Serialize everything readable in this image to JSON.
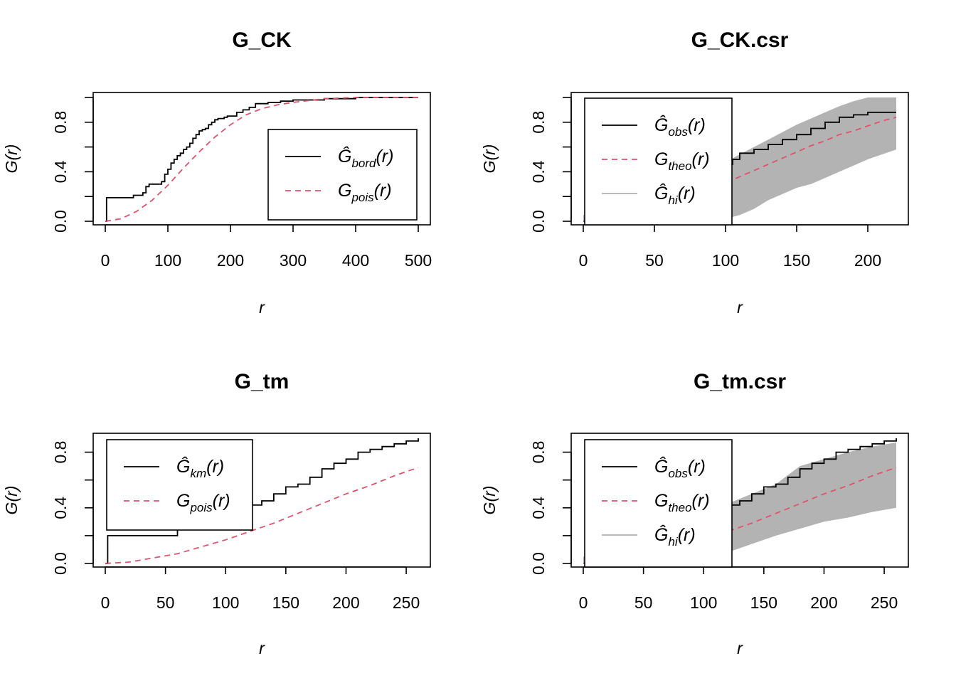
{
  "chart_data": [
    {
      "type": "line",
      "title": "G_CK",
      "xlabel": "r",
      "ylabel": "G(r)",
      "xlim": [
        0,
        500
      ],
      "ylim": [
        0,
        1
      ],
      "xticks": [
        0,
        100,
        200,
        300,
        400,
        500
      ],
      "yticks": [
        0,
        0.4,
        0.8
      ],
      "ytick_labels": [
        "0.0",
        "0.4",
        "0.8"
      ],
      "envelope": null,
      "series": [
        {
          "name": "Ĝbord(r)",
          "symbol": "Ĝ",
          "subscript": "bord",
          "arg": "(r)",
          "color": "#000000",
          "dash": "solid",
          "step": true,
          "x": [
            0,
            2,
            40,
            45,
            50,
            60,
            65,
            70,
            80,
            90,
            95,
            100,
            105,
            110,
            115,
            120,
            125,
            130,
            135,
            140,
            145,
            150,
            155,
            160,
            165,
            170,
            175,
            180,
            185,
            190,
            195,
            200,
            210,
            220,
            230,
            240,
            260,
            280,
            300,
            350,
            400,
            450,
            500
          ],
          "y": [
            0,
            0.19,
            0.19,
            0.21,
            0.21,
            0.23,
            0.28,
            0.3,
            0.3,
            0.32,
            0.38,
            0.42,
            0.47,
            0.5,
            0.53,
            0.55,
            0.58,
            0.6,
            0.63,
            0.67,
            0.7,
            0.73,
            0.74,
            0.75,
            0.78,
            0.8,
            0.82,
            0.83,
            0.83,
            0.84,
            0.85,
            0.85,
            0.88,
            0.9,
            0.92,
            0.95,
            0.96,
            0.97,
            0.98,
            0.99,
            1.0,
            1.0,
            1.0
          ]
        },
        {
          "name": "Gpois(r)",
          "symbol": "G",
          "subscript": "pois",
          "arg": "(r)",
          "color": "#df536b",
          "dash": "dashed",
          "step": false,
          "x": [
            0,
            25,
            50,
            75,
            100,
            125,
            150,
            175,
            200,
            225,
            250,
            275,
            300,
            350,
            400,
            450,
            500
          ],
          "y": [
            0,
            0.02,
            0.08,
            0.17,
            0.29,
            0.43,
            0.56,
            0.68,
            0.78,
            0.86,
            0.91,
            0.94,
            0.96,
            0.99,
            1.0,
            1.0,
            1.0
          ]
        }
      ],
      "legend": "right"
    },
    {
      "type": "line",
      "title": "G_CK.csr",
      "xlabel": "r",
      "ylabel": "G(r)",
      "xlim": [
        0,
        220
      ],
      "ylim": [
        0,
        1
      ],
      "xticks": [
        0,
        50,
        100,
        150,
        200
      ],
      "yticks": [
        0,
        0.4,
        0.8
      ],
      "ytick_labels": [
        "0.0",
        "0.4",
        "0.8"
      ],
      "envelope": {
        "color": "#b3b3b3",
        "x": [
          0,
          10,
          20,
          30,
          40,
          50,
          60,
          70,
          80,
          90,
          100,
          110,
          120,
          130,
          140,
          150,
          160,
          170,
          180,
          190,
          200,
          210,
          220
        ],
        "lo": [
          0,
          0,
          0,
          0,
          0,
          0,
          0,
          0,
          0,
          0,
          0.02,
          0.05,
          0.1,
          0.17,
          0.22,
          0.27,
          0.3,
          0.35,
          0.4,
          0.45,
          0.5,
          0.54,
          0.58
        ],
        "hi": [
          0.05,
          0.09,
          0.12,
          0.15,
          0.19,
          0.22,
          0.26,
          0.3,
          0.36,
          0.42,
          0.48,
          0.54,
          0.6,
          0.66,
          0.72,
          0.78,
          0.83,
          0.88,
          0.93,
          0.97,
          1.0,
          1.0,
          1.0
        ]
      },
      "series": [
        {
          "name": "Ĝobs(r)",
          "symbol": "Ĝ",
          "subscript": "obs",
          "arg": "(r)",
          "color": "#000000",
          "dash": "solid",
          "step": true,
          "x": [
            0,
            2,
            40,
            45,
            55,
            60,
            70,
            80,
            90,
            95,
            100,
            105,
            110,
            120,
            130,
            140,
            150,
            160,
            170,
            180,
            190,
            200,
            210,
            220
          ],
          "y": [
            0,
            0.19,
            0.19,
            0.21,
            0.23,
            0.28,
            0.3,
            0.32,
            0.38,
            0.42,
            0.46,
            0.5,
            0.55,
            0.58,
            0.62,
            0.66,
            0.7,
            0.75,
            0.8,
            0.84,
            0.86,
            0.88,
            0.88,
            0.88
          ]
        },
        {
          "name": "Gtheo(r)",
          "symbol": "G",
          "subscript": "theo",
          "arg": "(r)",
          "color": "#df536b",
          "dash": "dashed",
          "step": false,
          "x": [
            0,
            10,
            20,
            30,
            40,
            50,
            60,
            70,
            80,
            90,
            100,
            110,
            120,
            130,
            140,
            150,
            160,
            170,
            180,
            190,
            200,
            210,
            220
          ],
          "y": [
            0,
            0.01,
            0.02,
            0.04,
            0.07,
            0.1,
            0.13,
            0.17,
            0.21,
            0.26,
            0.31,
            0.36,
            0.41,
            0.46,
            0.51,
            0.56,
            0.61,
            0.65,
            0.7,
            0.73,
            0.77,
            0.81,
            0.84
          ]
        },
        {
          "name": "Ĝhi(r)",
          "symbol": "Ĝ",
          "subscript": "hi",
          "arg": "(r)",
          "color": "#b3b3b3",
          "dash": "solid",
          "step": false,
          "x": [],
          "y": []
        }
      ],
      "legend": "top-left"
    },
    {
      "type": "line",
      "title": "G_tm",
      "xlabel": "r",
      "ylabel": "G(r)",
      "xlim": [
        0,
        260
      ],
      "ylim": [
        0,
        0.9
      ],
      "xticks": [
        0,
        50,
        100,
        150,
        200,
        250
      ],
      "yticks": [
        0,
        0.4,
        0.8
      ],
      "ytick_labels": [
        "0.0",
        "0.4",
        "0.8"
      ],
      "envelope": null,
      "series": [
        {
          "name": "Ĝkm(r)",
          "symbol": "Ĝ",
          "subscript": "km",
          "arg": "(r)",
          "color": "#000000",
          "dash": "solid",
          "step": true,
          "x": [
            0,
            2,
            55,
            60,
            70,
            80,
            90,
            100,
            110,
            120,
            130,
            140,
            150,
            160,
            170,
            180,
            190,
            200,
            210,
            220,
            230,
            240,
            250,
            260
          ],
          "y": [
            0,
            0.2,
            0.2,
            0.25,
            0.27,
            0.28,
            0.3,
            0.35,
            0.4,
            0.42,
            0.45,
            0.5,
            0.55,
            0.57,
            0.62,
            0.68,
            0.72,
            0.75,
            0.8,
            0.82,
            0.84,
            0.86,
            0.88,
            0.9
          ]
        },
        {
          "name": "Gpois(r)",
          "symbol": "G",
          "subscript": "pois",
          "arg": "(r)",
          "color": "#df536b",
          "dash": "dashed",
          "step": false,
          "x": [
            0,
            20,
            40,
            60,
            80,
            100,
            120,
            140,
            160,
            180,
            200,
            220,
            240,
            260
          ],
          "y": [
            0,
            0.01,
            0.04,
            0.07,
            0.12,
            0.17,
            0.23,
            0.29,
            0.36,
            0.43,
            0.5,
            0.56,
            0.63,
            0.69
          ]
        }
      ],
      "legend": "top-left"
    },
    {
      "type": "line",
      "title": "G_tm.csr",
      "xlabel": "r",
      "ylabel": "G(r)",
      "xlim": [
        0,
        260
      ],
      "ylim": [
        0,
        0.9
      ],
      "xticks": [
        0,
        50,
        100,
        150,
        200,
        250
      ],
      "yticks": [
        0,
        0.4,
        0.8
      ],
      "ytick_labels": [
        "0.0",
        "0.4",
        "0.8"
      ],
      "envelope": {
        "color": "#b3b3b3",
        "x": [
          0,
          20,
          40,
          60,
          80,
          100,
          120,
          140,
          160,
          180,
          200,
          220,
          240,
          260
        ],
        "lo": [
          0,
          0,
          0,
          0,
          0.02,
          0.04,
          0.08,
          0.14,
          0.2,
          0.25,
          0.3,
          0.33,
          0.37,
          0.4
        ],
        "hi": [
          0.05,
          0.1,
          0.15,
          0.22,
          0.3,
          0.37,
          0.43,
          0.5,
          0.57,
          0.7,
          0.75,
          0.8,
          0.84,
          0.87
        ]
      },
      "series": [
        {
          "name": "Ĝobs(r)",
          "symbol": "Ĝ",
          "subscript": "obs",
          "arg": "(r)",
          "color": "#000000",
          "dash": "solid",
          "step": true,
          "x": [
            0,
            2,
            55,
            60,
            70,
            80,
            90,
            100,
            110,
            120,
            130,
            140,
            150,
            160,
            170,
            180,
            190,
            200,
            210,
            220,
            230,
            240,
            250,
            260
          ],
          "y": [
            0,
            0.2,
            0.2,
            0.25,
            0.27,
            0.28,
            0.3,
            0.35,
            0.4,
            0.42,
            0.45,
            0.5,
            0.55,
            0.57,
            0.62,
            0.68,
            0.72,
            0.75,
            0.8,
            0.82,
            0.84,
            0.86,
            0.88,
            0.9
          ]
        },
        {
          "name": "Gtheo(r)",
          "symbol": "G",
          "subscript": "theo",
          "arg": "(r)",
          "color": "#df536b",
          "dash": "dashed",
          "step": false,
          "x": [
            0,
            20,
            40,
            60,
            80,
            100,
            120,
            140,
            160,
            180,
            200,
            220,
            240,
            260
          ],
          "y": [
            0,
            0.01,
            0.04,
            0.07,
            0.12,
            0.17,
            0.23,
            0.29,
            0.36,
            0.43,
            0.5,
            0.56,
            0.63,
            0.69
          ]
        },
        {
          "name": "Ĝhi(r)",
          "symbol": "Ĝ",
          "subscript": "hi",
          "arg": "(r)",
          "color": "#b3b3b3",
          "dash": "solid",
          "step": false,
          "x": [],
          "y": []
        }
      ],
      "legend": "top-left"
    }
  ]
}
